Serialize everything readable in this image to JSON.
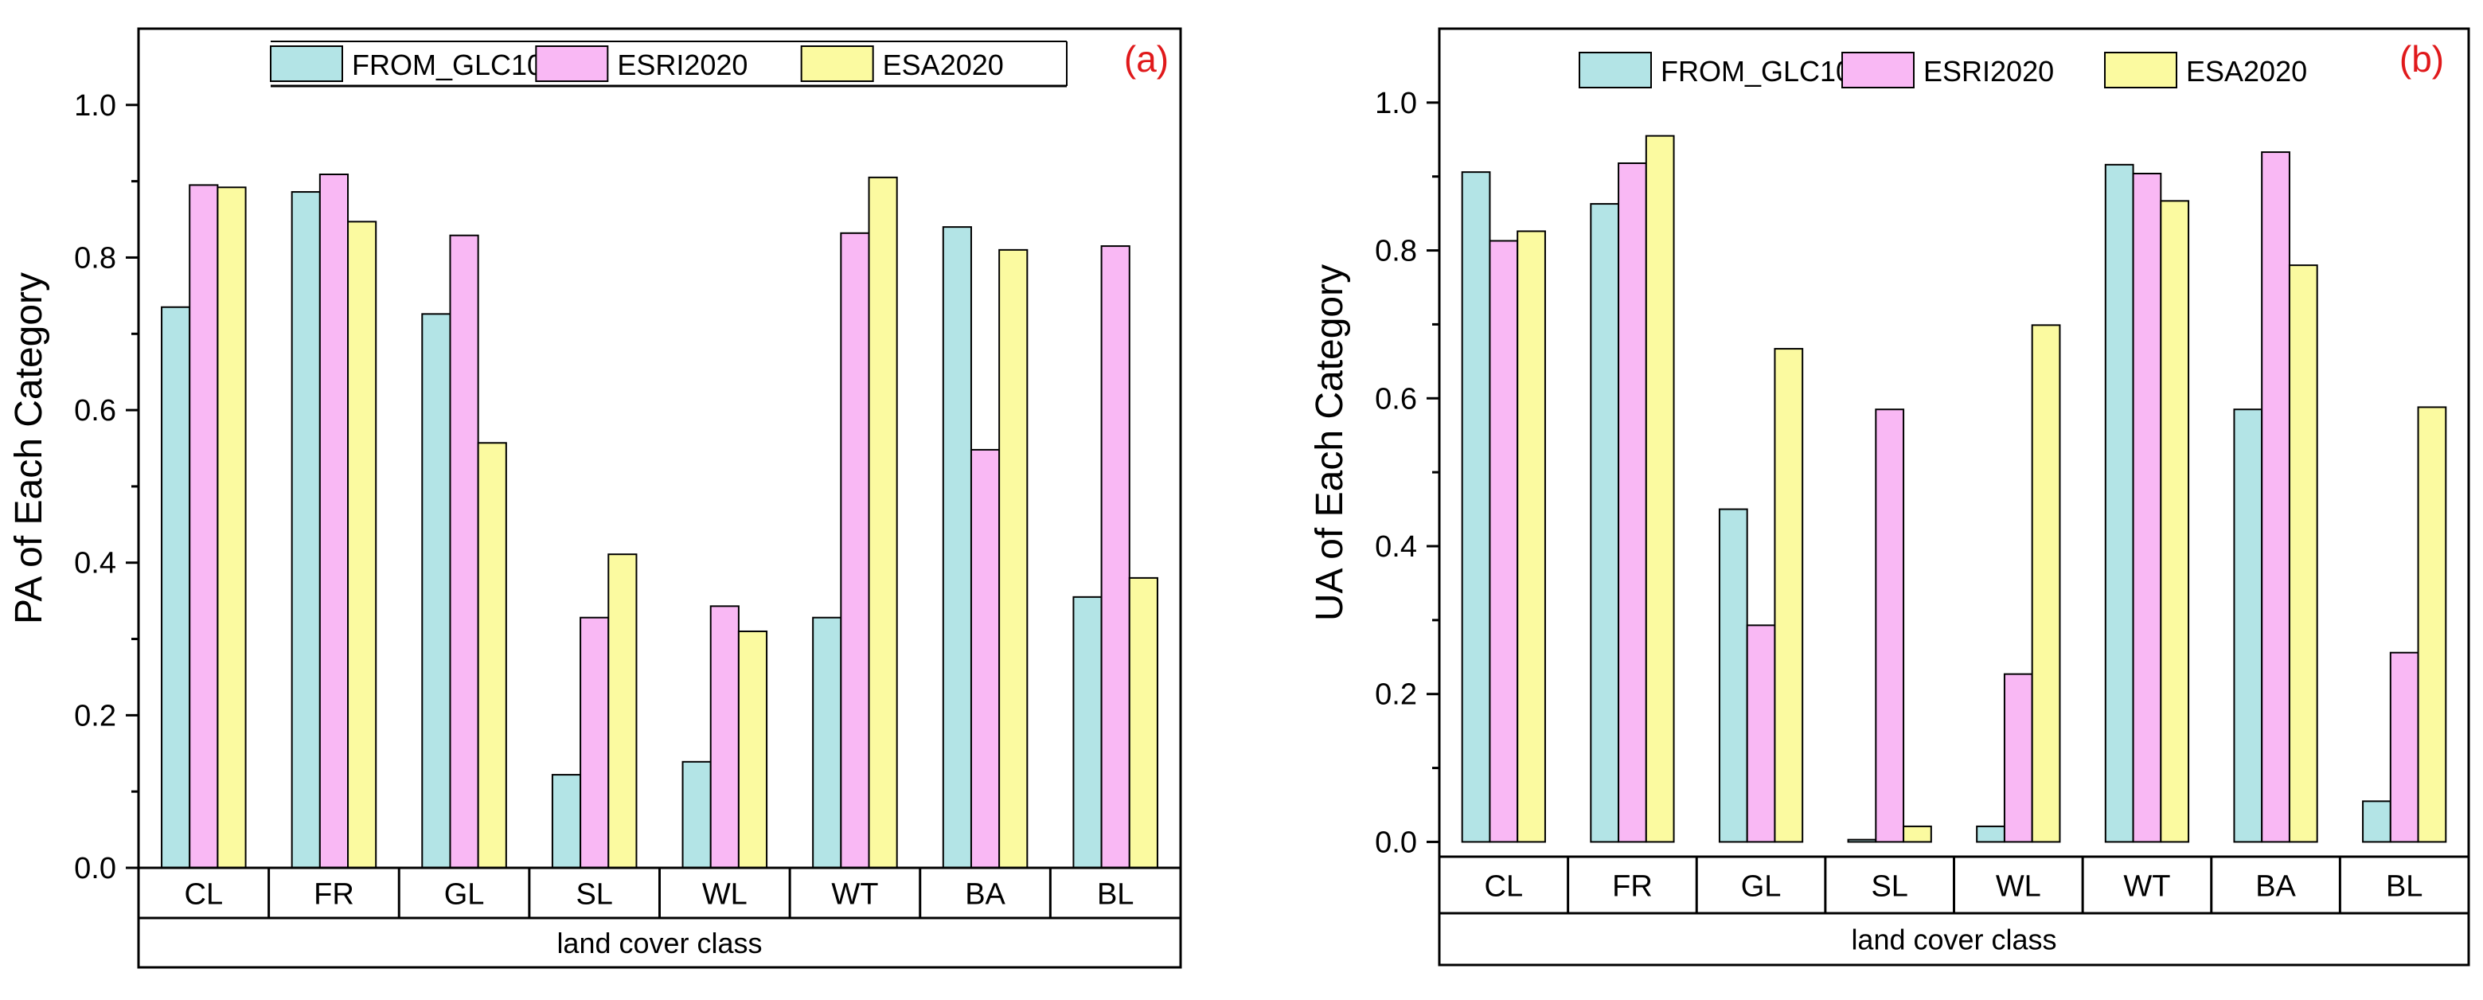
{
  "colors": {
    "FROM_GLC10": "#b3e4e6",
    "ESRI2020": "#f9b8f4",
    "ESA2020": "#fbfaa0",
    "panel_label": "#e0191b",
    "axis": "#000000"
  },
  "legend": [
    "FROM_GLC10",
    "ESRI2020",
    "ESA2020"
  ],
  "chart_data": [
    {
      "type": "bar",
      "panel_label": "(a)",
      "title": "",
      "ylabel": "PA of Each Category",
      "xlabel": "land cover class",
      "ylim": [
        0,
        1.1
      ],
      "yticks": [
        "0.0",
        "0.2",
        "0.4",
        "0.6",
        "0.8",
        "1.0"
      ],
      "categories": [
        "CL",
        "FR",
        "GL",
        "SL",
        "WL",
        "WT",
        "BA",
        "BL"
      ],
      "series": [
        {
          "name": "FROM_GLC10",
          "values": [
            0.735,
            0.886,
            0.726,
            0.122,
            0.139,
            0.328,
            0.84,
            0.355
          ]
        },
        {
          "name": "ESRI2020",
          "values": [
            0.895,
            0.909,
            0.829,
            0.328,
            0.343,
            0.832,
            0.548,
            0.815
          ]
        },
        {
          "name": "ESA2020",
          "values": [
            0.892,
            0.847,
            0.557,
            0.411,
            0.31,
            0.905,
            0.81,
            0.38
          ]
        }
      ],
      "legend_position": "top"
    },
    {
      "type": "bar",
      "panel_label": "(b)",
      "title": "",
      "ylabel": "UA of Each Category",
      "xlabel": "land cover class",
      "ylim": [
        -0.02,
        1.1
      ],
      "yticks": [
        "0.0",
        "0.2",
        "0.4",
        "0.6",
        "0.8",
        "1.0"
      ],
      "categories": [
        "CL",
        "FR",
        "GL",
        "SL",
        "WL",
        "WT",
        "BA",
        "BL"
      ],
      "series": [
        {
          "name": "FROM_GLC10",
          "values": [
            0.906,
            0.863,
            0.45,
            0.003,
            0.021,
            0.916,
            0.585,
            0.055
          ]
        },
        {
          "name": "ESRI2020",
          "values": [
            0.813,
            0.918,
            0.293,
            0.585,
            0.227,
            0.904,
            0.933,
            0.256
          ]
        },
        {
          "name": "ESA2020",
          "values": [
            0.826,
            0.955,
            0.667,
            0.021,
            0.699,
            0.867,
            0.78,
            0.588
          ]
        }
      ],
      "legend_position": "top"
    }
  ]
}
